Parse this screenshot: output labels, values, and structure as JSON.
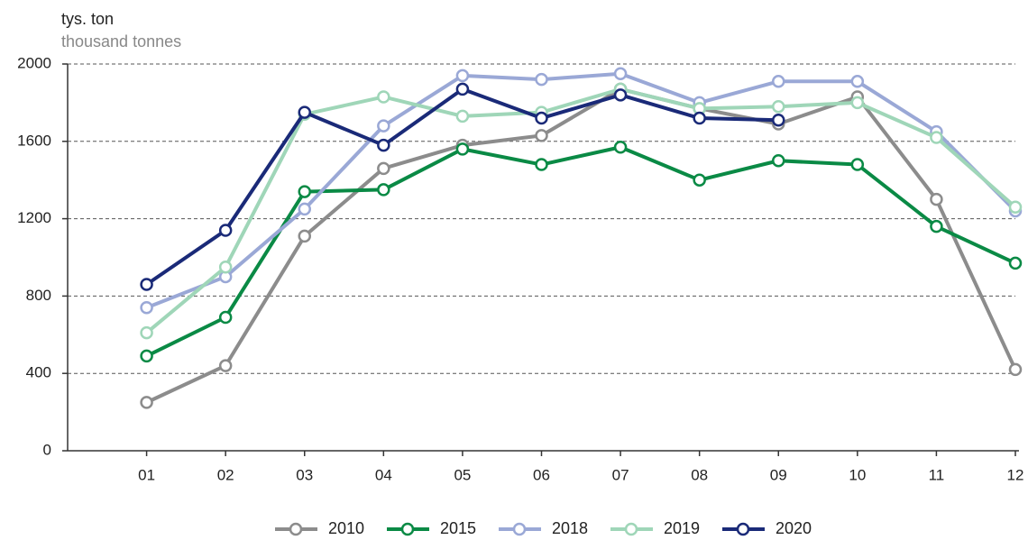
{
  "chart_data": {
    "type": "line",
    "ylabel": "tys. ton",
    "ylabel2": "thousand tonnes",
    "categories": [
      "01",
      "02",
      "03",
      "04",
      "05",
      "06",
      "07",
      "08",
      "09",
      "10",
      "11",
      "12"
    ],
    "ylim": [
      0,
      2000
    ],
    "yticks": [
      0,
      400,
      800,
      1200,
      1600,
      2000
    ],
    "grid": true,
    "series": [
      {
        "name": "2010",
        "color": "#8c8c8c",
        "values": [
          250,
          440,
          1110,
          1460,
          1580,
          1630,
          1870,
          1770,
          1690,
          1830,
          1300,
          420
        ]
      },
      {
        "name": "2015",
        "color": "#0a8a45",
        "values": [
          490,
          690,
          1340,
          1350,
          1560,
          1480,
          1570,
          1400,
          1500,
          1480,
          1160,
          970
        ]
      },
      {
        "name": "2018",
        "color": "#9aa8d6",
        "values": [
          740,
          900,
          1250,
          1680,
          1940,
          1920,
          1950,
          1800,
          1910,
          1910,
          1650,
          1240
        ]
      },
      {
        "name": "2019",
        "color": "#9fd6b8",
        "values": [
          610,
          950,
          1740,
          1830,
          1730,
          1750,
          1870,
          1770,
          1780,
          1800,
          1620,
          1260
        ]
      },
      {
        "name": "2020",
        "color": "#1a2a78",
        "values": [
          860,
          1140,
          1750,
          1580,
          1870,
          1720,
          1840,
          1720,
          1710,
          null,
          null,
          null
        ]
      }
    ]
  }
}
